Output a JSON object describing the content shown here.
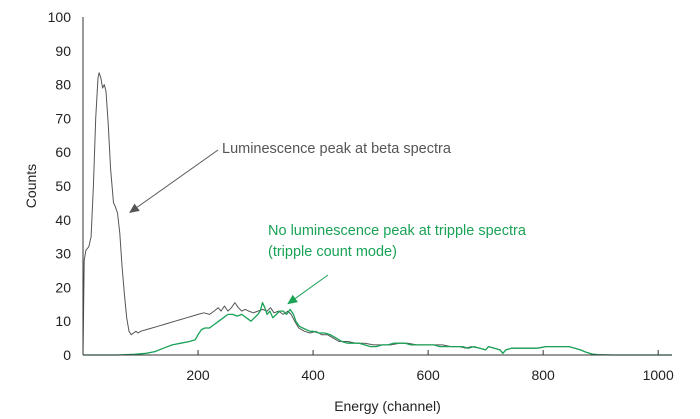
{
  "chart_data": {
    "type": "line",
    "title": "",
    "xlabel": "Energy (channel)",
    "ylabel": "Counts",
    "xlim": [
      0,
      1024
    ],
    "ylim": [
      0,
      100
    ],
    "x_ticks": [
      200,
      400,
      600,
      800,
      1000
    ],
    "y_ticks": [
      0,
      10,
      20,
      30,
      40,
      50,
      60,
      70,
      80,
      90,
      100
    ],
    "grid": false,
    "series": [
      {
        "key": "beta",
        "color": "#555555",
        "points": [
          [
            0,
            0
          ],
          [
            2,
            28
          ],
          [
            5,
            31
          ],
          [
            10,
            32
          ],
          [
            14,
            35
          ],
          [
            18,
            50
          ],
          [
            22,
            70
          ],
          [
            26,
            82
          ],
          [
            28,
            83.5
          ],
          [
            31,
            82
          ],
          [
            34,
            79
          ],
          [
            37,
            80
          ],
          [
            40,
            78
          ],
          [
            44,
            68
          ],
          [
            48,
            55
          ],
          [
            53,
            45
          ],
          [
            56,
            44
          ],
          [
            60,
            42
          ],
          [
            64,
            36
          ],
          [
            68,
            26
          ],
          [
            72,
            18
          ],
          [
            76,
            11
          ],
          [
            80,
            7
          ],
          [
            84,
            6
          ],
          [
            88,
            6.5
          ],
          [
            92,
            7
          ],
          [
            96,
            6.5
          ],
          [
            100,
            7
          ],
          [
            110,
            7.5
          ],
          [
            120,
            8
          ],
          [
            130,
            8.5
          ],
          [
            140,
            9
          ],
          [
            150,
            9.5
          ],
          [
            160,
            10
          ],
          [
            170,
            10.5
          ],
          [
            180,
            11
          ],
          [
            190,
            11.5
          ],
          [
            200,
            12
          ],
          [
            210,
            12.5
          ],
          [
            220,
            12
          ],
          [
            228,
            13
          ],
          [
            235,
            14
          ],
          [
            240,
            13
          ],
          [
            246,
            14.5
          ],
          [
            252,
            13
          ],
          [
            258,
            14
          ],
          [
            264,
            15.5
          ],
          [
            270,
            14
          ],
          [
            276,
            13
          ],
          [
            282,
            13.5
          ],
          [
            288,
            13
          ],
          [
            296,
            12.5
          ],
          [
            304,
            13
          ],
          [
            312,
            13.5
          ],
          [
            320,
            13
          ],
          [
            326,
            14
          ],
          [
            332,
            12.5
          ],
          [
            340,
            13
          ],
          [
            348,
            12
          ],
          [
            356,
            13
          ],
          [
            362,
            12
          ],
          [
            368,
            10
          ],
          [
            375,
            8
          ],
          [
            385,
            7
          ],
          [
            395,
            6.5
          ],
          [
            405,
            7
          ],
          [
            415,
            6
          ],
          [
            425,
            6
          ],
          [
            435,
            5
          ],
          [
            445,
            4
          ],
          [
            460,
            4
          ],
          [
            475,
            3.5
          ],
          [
            490,
            3.5
          ],
          [
            505,
            3
          ],
          [
            520,
            3
          ],
          [
            535,
            3
          ],
          [
            550,
            3.5
          ],
          [
            565,
            3.5
          ],
          [
            580,
            3
          ],
          [
            595,
            3
          ],
          [
            610,
            3
          ],
          [
            625,
            3
          ],
          [
            640,
            2.5
          ],
          [
            655,
            2.5
          ],
          [
            665,
            2
          ],
          [
            675,
            2.5
          ],
          [
            690,
            2
          ],
          [
            700,
            1.5
          ],
          [
            705,
            2.5
          ],
          [
            715,
            2
          ],
          [
            725,
            1.5
          ],
          [
            730,
            0.5
          ],
          [
            735,
            1.5
          ],
          [
            745,
            2
          ],
          [
            760,
            2
          ],
          [
            775,
            2
          ],
          [
            790,
            2
          ],
          [
            805,
            2.5
          ],
          [
            820,
            2.5
          ],
          [
            835,
            2.5
          ],
          [
            845,
            2.5
          ],
          [
            855,
            2
          ],
          [
            865,
            1.5
          ],
          [
            875,
            0.8
          ],
          [
            885,
            0.3
          ],
          [
            895,
            0.1
          ],
          [
            920,
            0
          ],
          [
            1000,
            0
          ],
          [
            1024,
            0
          ]
        ]
      },
      {
        "key": "tripple",
        "color": "#1aa257",
        "points": [
          [
            0,
            0
          ],
          [
            60,
            0
          ],
          [
            90,
            0.2
          ],
          [
            110,
            0.5
          ],
          [
            125,
            1
          ],
          [
            140,
            2
          ],
          [
            155,
            3
          ],
          [
            170,
            3.5
          ],
          [
            185,
            4
          ],
          [
            195,
            4.5
          ],
          [
            200,
            6
          ],
          [
            206,
            7.5
          ],
          [
            212,
            8
          ],
          [
            220,
            8
          ],
          [
            228,
            9
          ],
          [
            236,
            10
          ],
          [
            244,
            11
          ],
          [
            252,
            12
          ],
          [
            260,
            12
          ],
          [
            268,
            11.5
          ],
          [
            276,
            12
          ],
          [
            284,
            11
          ],
          [
            292,
            10
          ],
          [
            298,
            11
          ],
          [
            304,
            12
          ],
          [
            308,
            13
          ],
          [
            312,
            15.5
          ],
          [
            316,
            14
          ],
          [
            320,
            12
          ],
          [
            325,
            13
          ],
          [
            330,
            11
          ],
          [
            336,
            12
          ],
          [
            342,
            13
          ],
          [
            348,
            13
          ],
          [
            354,
            12
          ],
          [
            360,
            13.5
          ],
          [
            366,
            12
          ],
          [
            370,
            10
          ],
          [
            376,
            8.5
          ],
          [
            382,
            8
          ],
          [
            388,
            7.5
          ],
          [
            395,
            7
          ],
          [
            400,
            7
          ],
          [
            410,
            6.5
          ],
          [
            420,
            6.5
          ],
          [
            430,
            6
          ],
          [
            440,
            5
          ],
          [
            450,
            4
          ],
          [
            460,
            3.5
          ],
          [
            470,
            3.5
          ],
          [
            480,
            3.5
          ],
          [
            490,
            3
          ],
          [
            500,
            2.5
          ],
          [
            510,
            2.5
          ],
          [
            520,
            3
          ],
          [
            530,
            3
          ],
          [
            540,
            3.5
          ],
          [
            550,
            3.5
          ],
          [
            560,
            3.5
          ],
          [
            570,
            3
          ],
          [
            580,
            3
          ],
          [
            590,
            3
          ],
          [
            600,
            3
          ],
          [
            610,
            3
          ],
          [
            620,
            2.5
          ],
          [
            630,
            2.5
          ],
          [
            640,
            2.5
          ],
          [
            650,
            2.5
          ],
          [
            660,
            2.5
          ],
          [
            670,
            2
          ],
          [
            680,
            2.5
          ],
          [
            690,
            2
          ],
          [
            700,
            1.5
          ],
          [
            705,
            2.5
          ],
          [
            715,
            2
          ],
          [
            725,
            1.5
          ],
          [
            730,
            0.5
          ],
          [
            735,
            1.5
          ],
          [
            745,
            2
          ],
          [
            760,
            2
          ],
          [
            775,
            2
          ],
          [
            790,
            2
          ],
          [
            805,
            2.5
          ],
          [
            820,
            2.5
          ],
          [
            835,
            2.5
          ],
          [
            845,
            2.5
          ],
          [
            855,
            2
          ],
          [
            865,
            1.5
          ],
          [
            875,
            0.8
          ],
          [
            885,
            0.3
          ],
          [
            895,
            0.1
          ],
          [
            920,
            0
          ],
          [
            1000,
            0
          ],
          [
            1024,
            0
          ]
        ]
      }
    ],
    "annotations": [
      {
        "key": "beta",
        "text_lines": [
          "Luminescence peak at beta spectra"
        ],
        "color": "#555555",
        "arrow_target": [
          80,
          42
        ]
      },
      {
        "key": "tripple",
        "text_lines": [
          "No luminescence peak at tripple spectra",
          "(tripple count mode)"
        ],
        "color": "#1aa257",
        "arrow_target": [
          355,
          15
        ]
      }
    ]
  }
}
